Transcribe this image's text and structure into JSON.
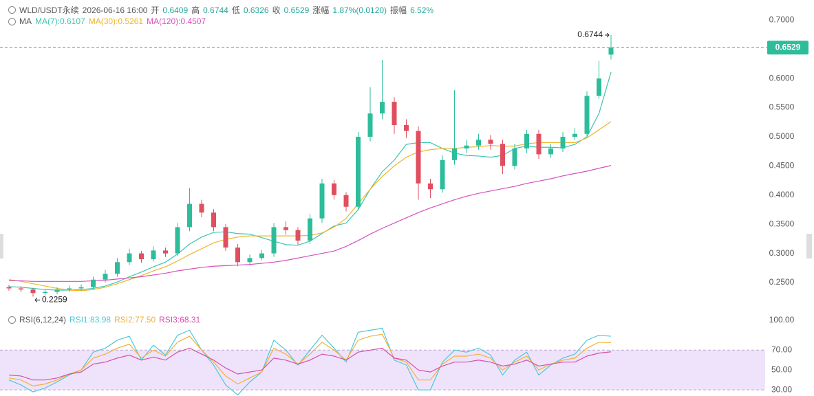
{
  "header": {
    "symbol": "WLD/USDT永续",
    "time": "2026-06-16 16:00",
    "fields": [
      {
        "label": "开",
        "value": "0.6409"
      },
      {
        "label": "高",
        "value": "0.6744"
      },
      {
        "label": "低",
        "value": "0.6326"
      },
      {
        "label": "收",
        "value": "0.6529"
      },
      {
        "label": "涨幅",
        "value": "1.87%(0.0120)"
      },
      {
        "label": "振幅",
        "value": "6.52%"
      }
    ]
  },
  "chart_data": [
    {
      "type": "candlestick",
      "legend": "MA",
      "up_color": "#2ebd9b",
      "down_color": "#e04f5f",
      "open": [
        0.242,
        0.24,
        0.238,
        0.232,
        0.234,
        0.238,
        0.24,
        0.242,
        0.255,
        0.265,
        0.285,
        0.3,
        0.29,
        0.305,
        0.3,
        0.345,
        0.385,
        0.37,
        0.345,
        0.31,
        0.285,
        0.292,
        0.3,
        0.345,
        0.34,
        0.322,
        0.36,
        0.42,
        0.4,
        0.38,
        0.5,
        0.54,
        0.56,
        0.52,
        0.51,
        0.42,
        0.41,
        0.46,
        0.48,
        0.485,
        0.495,
        0.488,
        0.45,
        0.48,
        0.505,
        0.47,
        0.48,
        0.5,
        0.505,
        0.57,
        0.6409
      ],
      "high": [
        0.246,
        0.244,
        0.241,
        0.238,
        0.242,
        0.245,
        0.247,
        0.26,
        0.272,
        0.292,
        0.308,
        0.304,
        0.312,
        0.31,
        0.352,
        0.412,
        0.392,
        0.376,
        0.35,
        0.316,
        0.298,
        0.306,
        0.352,
        0.355,
        0.345,
        0.368,
        0.428,
        0.426,
        0.405,
        0.508,
        0.585,
        0.632,
        0.568,
        0.53,
        0.518,
        0.428,
        0.468,
        0.58,
        0.495,
        0.505,
        0.503,
        0.495,
        0.488,
        0.512,
        0.512,
        0.488,
        0.508,
        0.515,
        0.578,
        0.63,
        0.6744
      ],
      "low": [
        0.236,
        0.233,
        0.2259,
        0.228,
        0.23,
        0.234,
        0.236,
        0.238,
        0.25,
        0.26,
        0.28,
        0.284,
        0.286,
        0.294,
        0.296,
        0.338,
        0.362,
        0.338,
        0.304,
        0.278,
        0.279,
        0.288,
        0.294,
        0.332,
        0.315,
        0.316,
        0.352,
        0.392,
        0.372,
        0.374,
        0.492,
        0.53,
        0.505,
        0.498,
        0.392,
        0.395,
        0.404,
        0.452,
        0.472,
        0.478,
        0.478,
        0.436,
        0.444,
        0.472,
        0.462,
        0.464,
        0.474,
        0.495,
        0.5,
        0.565,
        0.6326
      ],
      "close": [
        0.24,
        0.238,
        0.232,
        0.234,
        0.238,
        0.24,
        0.242,
        0.255,
        0.265,
        0.285,
        0.3,
        0.29,
        0.305,
        0.3,
        0.345,
        0.385,
        0.37,
        0.345,
        0.31,
        0.285,
        0.292,
        0.3,
        0.345,
        0.34,
        0.322,
        0.36,
        0.42,
        0.4,
        0.38,
        0.5,
        0.54,
        0.56,
        0.52,
        0.51,
        0.42,
        0.41,
        0.46,
        0.48,
        0.485,
        0.495,
        0.488,
        0.45,
        0.48,
        0.505,
        0.47,
        0.48,
        0.5,
        0.505,
        0.57,
        0.6,
        0.6529
      ],
      "series": [
        {
          "name": "MA(7):0.6107",
          "color": "#3cc4b0",
          "values": [
            0.243,
            0.242,
            0.24,
            0.238,
            0.237,
            0.237,
            0.238,
            0.24,
            0.244,
            0.251,
            0.26,
            0.268,
            0.277,
            0.285,
            0.299,
            0.316,
            0.328,
            0.336,
            0.337,
            0.334,
            0.333,
            0.327,
            0.321,
            0.315,
            0.314,
            0.321,
            0.334,
            0.347,
            0.352,
            0.375,
            0.41,
            0.44,
            0.46,
            0.487,
            0.49,
            0.49,
            0.48,
            0.472,
            0.468,
            0.467,
            0.465,
            0.468,
            0.48,
            0.484,
            0.482,
            0.482,
            0.481,
            0.487,
            0.5,
            0.54,
            0.6107
          ]
        },
        {
          "name": "MA(30):0.5261",
          "color": "#f0b429",
          "values": [
            0.255,
            0.252,
            0.248,
            0.244,
            0.24,
            0.237,
            0.236,
            0.238,
            0.242,
            0.248,
            0.255,
            0.262,
            0.27,
            0.277,
            0.287,
            0.298,
            0.308,
            0.318,
            0.324,
            0.328,
            0.33,
            0.33,
            0.33,
            0.33,
            0.33,
            0.331,
            0.335,
            0.345,
            0.36,
            0.385,
            0.41,
            0.432,
            0.45,
            0.465,
            0.474,
            0.478,
            0.48,
            0.48,
            0.482,
            0.483,
            0.485,
            0.484,
            0.484,
            0.488,
            0.49,
            0.49,
            0.49,
            0.49,
            0.498,
            0.512,
            0.5261
          ]
        },
        {
          "name": "MA(120):0.4507",
          "color": "#d64fbf",
          "values": [
            0.253,
            0.253,
            0.252,
            0.252,
            0.252,
            0.252,
            0.252,
            0.253,
            0.254,
            0.256,
            0.258,
            0.26,
            0.263,
            0.266,
            0.27,
            0.273,
            0.276,
            0.278,
            0.279,
            0.28,
            0.281,
            0.283,
            0.285,
            0.288,
            0.292,
            0.296,
            0.3,
            0.304,
            0.312,
            0.322,
            0.333,
            0.343,
            0.352,
            0.361,
            0.37,
            0.378,
            0.385,
            0.392,
            0.398,
            0.403,
            0.407,
            0.411,
            0.415,
            0.42,
            0.424,
            0.428,
            0.433,
            0.437,
            0.441,
            0.446,
            0.4507
          ]
        }
      ],
      "ylim": [
        0.204,
        0.711
      ],
      "yticks": [
        {
          "value": 0.25,
          "label": "0.2500"
        },
        {
          "value": 0.3,
          "label": "0.3000"
        },
        {
          "value": 0.35,
          "label": "0.3500"
        },
        {
          "value": 0.4,
          "label": "0.4000"
        },
        {
          "value": 0.45,
          "label": "0.4500"
        },
        {
          "value": 0.5,
          "label": "0.5000"
        },
        {
          "value": 0.55,
          "label": "0.5500"
        },
        {
          "value": 0.6,
          "label": "0.6000"
        },
        {
          "value": 0.65,
          "label": "0.6500"
        },
        {
          "value": 0.7,
          "label": "0.7000"
        }
      ],
      "high_label": {
        "value": 0.6744,
        "label": "0.6744"
      },
      "low_label": {
        "value": 0.2259,
        "label": "0.2259"
      },
      "last_price": {
        "value": 0.6529,
        "label": "0.6529",
        "color": "#2ebd9b"
      }
    },
    {
      "type": "line",
      "legend": "RSI(6,12,24)",
      "series": [
        {
          "name": "RSI1:83.98",
          "color": "#4cc9d6",
          "values": [
            40,
            35,
            28,
            32,
            38,
            45,
            50,
            68,
            72,
            80,
            84,
            60,
            75,
            65,
            85,
            90,
            70,
            55,
            35,
            25,
            38,
            48,
            80,
            70,
            55,
            70,
            85,
            72,
            58,
            88,
            90,
            92,
            60,
            55,
            30,
            30,
            58,
            70,
            68,
            72,
            65,
            45,
            60,
            68,
            45,
            55,
            62,
            66,
            80,
            85,
            83.98
          ]
        },
        {
          "name": "RSI2:77.50",
          "color": "#f2b134",
          "values": [
            42,
            40,
            34,
            36,
            40,
            46,
            50,
            62,
            66,
            72,
            76,
            62,
            70,
            64,
            78,
            84,
            70,
            58,
            44,
            36,
            42,
            48,
            72,
            66,
            56,
            66,
            78,
            70,
            60,
            80,
            84,
            86,
            62,
            58,
            40,
            40,
            56,
            64,
            64,
            66,
            62,
            50,
            58,
            64,
            50,
            56,
            60,
            62,
            72,
            78,
            77.5
          ]
        },
        {
          "name": "RSI3:68.31",
          "color": "#d64fa8",
          "values": [
            45,
            44,
            40,
            40,
            42,
            46,
            48,
            56,
            58,
            62,
            65,
            60,
            63,
            60,
            68,
            72,
            66,
            60,
            52,
            46,
            48,
            50,
            62,
            60,
            56,
            60,
            66,
            64,
            60,
            68,
            70,
            72,
            62,
            60,
            50,
            48,
            54,
            58,
            58,
            60,
            58,
            54,
            56,
            60,
            54,
            56,
            58,
            58,
            64,
            67,
            68.31
          ]
        }
      ],
      "ylim": [
        23.9,
        102.7
      ],
      "yticks": [
        {
          "value": 30,
          "label": "30.00"
        },
        {
          "value": 50,
          "label": "50.00"
        },
        {
          "value": 70,
          "label": "70.00"
        },
        {
          "value": 100,
          "label": "100.00"
        }
      ],
      "band": [
        30,
        70
      ],
      "band_color": "#efe3fb"
    }
  ]
}
